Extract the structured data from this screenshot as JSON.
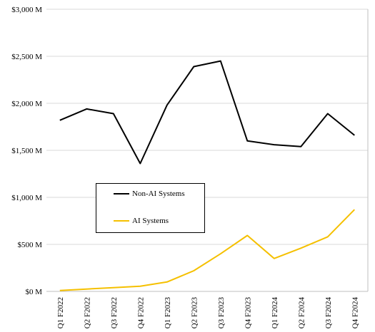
{
  "chart_data": {
    "type": "line",
    "title": "",
    "xlabel": "",
    "ylabel": "",
    "categories": [
      "Q1 F2022",
      "Q2 F2022",
      "Q3 F2022",
      "Q4 F2022",
      "Q1 F2023",
      "Q2 F2023",
      "Q3 F2023",
      "Q4 F2023",
      "Q1 F2024",
      "Q2 F2024",
      "Q3 F2024",
      "Q4 F2024"
    ],
    "ylim": [
      0,
      3000
    ],
    "yticks": [
      0,
      500,
      1000,
      1500,
      2000,
      2500,
      3000
    ],
    "ytick_labels": [
      "$0 M",
      "$500 M",
      "$1,000 M",
      "$1,500 M",
      "$2,000 M",
      "$2,500 M",
      "$3,000 M"
    ],
    "grid": true,
    "legend_position": "center-left",
    "series": [
      {
        "name": "Non-AI Systems",
        "color": "#000000",
        "values": [
          1820,
          1940,
          1890,
          1360,
          1980,
          2390,
          2450,
          1600,
          1560,
          1540,
          1890,
          1660
        ]
      },
      {
        "name": "AI Systems",
        "color": "#f5c000",
        "values": [
          10,
          25,
          40,
          55,
          100,
          220,
          400,
          595,
          350,
          460,
          580,
          870
        ]
      }
    ]
  }
}
